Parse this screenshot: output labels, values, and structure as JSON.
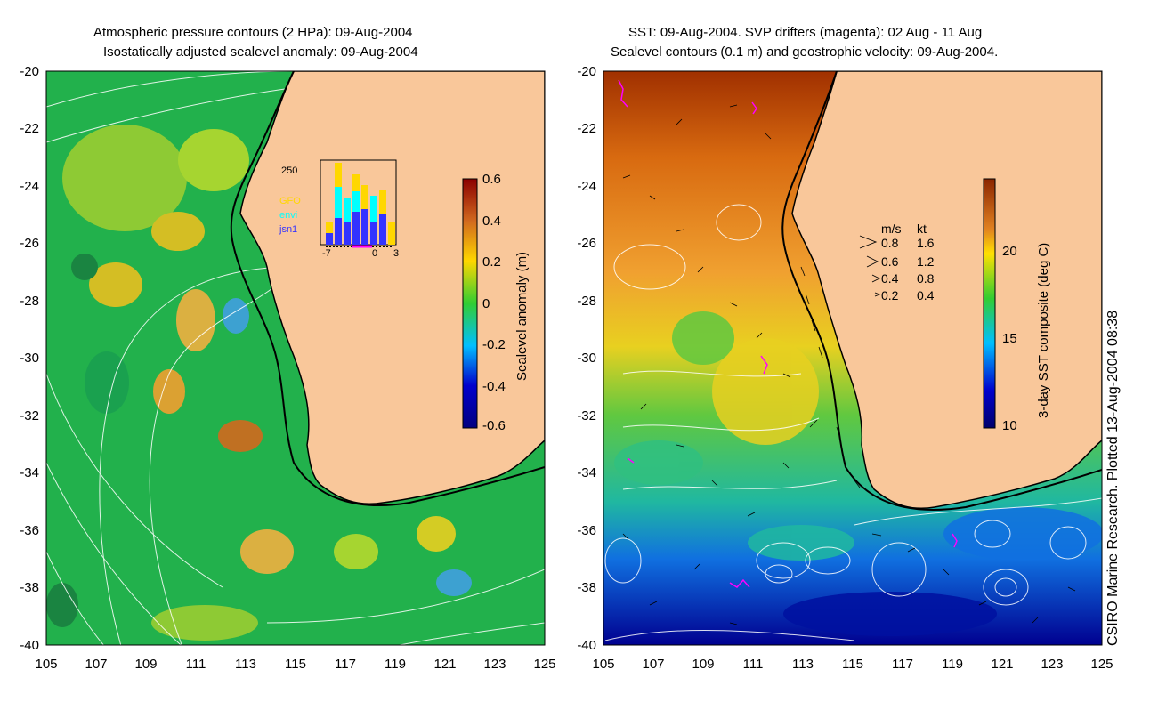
{
  "left_panel": {
    "title_line1": "Atmospheric pressure contours (2 HPa): 09-Aug-2004",
    "title_line2": "Isostatically adjusted sealevel anomaly: 09-Aug-2004",
    "colorbar": {
      "label": "Sealevel anomaly (m)",
      "ticks": [
        "0.6",
        "0.4",
        "0.2",
        "0",
        "-0.2",
        "-0.4",
        "-0.6"
      ],
      "colors": [
        "#8b0000",
        "#d2691e",
        "#ffd700",
        "#32cd32",
        "#00bfff",
        "#0000cd",
        "#000080"
      ]
    },
    "inset": {
      "ymax_label": "250",
      "x_ticks": [
        "-7",
        "0",
        "3"
      ],
      "legend": [
        {
          "name": "GFO",
          "color": "#ffd700"
        },
        {
          "name": "envi",
          "color": "#00ffff"
        },
        {
          "name": "jsn1",
          "color": "#3333ff"
        }
      ]
    }
  },
  "right_panel": {
    "title_line1": "SST: 09-Aug-2004. SVP drifters (magenta): 02 Aug - 11 Aug",
    "title_line2": "Sealevel contours (0.1 m) and geostrophic velocity: 09-Aug-2004.",
    "colorbar": {
      "label": "3-day SST composite (deg C)",
      "ticks": [
        "20",
        "15",
        "10"
      ],
      "colors": [
        "#8b2500",
        "#e08020",
        "#ffe000",
        "#32cd32",
        "#00bfff",
        "#0000cd",
        "#00006b"
      ]
    },
    "velocity_legend": {
      "header_ms": "m/s",
      "header_kt": "kt",
      "rows": [
        {
          "ms": "0.8",
          "kt": "1.6"
        },
        {
          "ms": "0.6",
          "kt": "1.2"
        },
        {
          "ms": "0.4",
          "kt": "0.8"
        },
        {
          "ms": "0.2",
          "kt": "0.4"
        }
      ]
    }
  },
  "axes": {
    "y_ticks": [
      "-20",
      "-22",
      "-24",
      "-26",
      "-28",
      "-30",
      "-32",
      "-34",
      "-36",
      "-38",
      "-40"
    ],
    "x_ticks": [
      "105",
      "107",
      "109",
      "111",
      "113",
      "115",
      "117",
      "119",
      "121",
      "123",
      "125"
    ]
  },
  "credit": "CSIRO Marine Research. Plotted 13-Aug-2004 08:38",
  "colors": {
    "land": "#f9c79a",
    "ocean_mid": "#22b14c",
    "coast": "#000000"
  }
}
